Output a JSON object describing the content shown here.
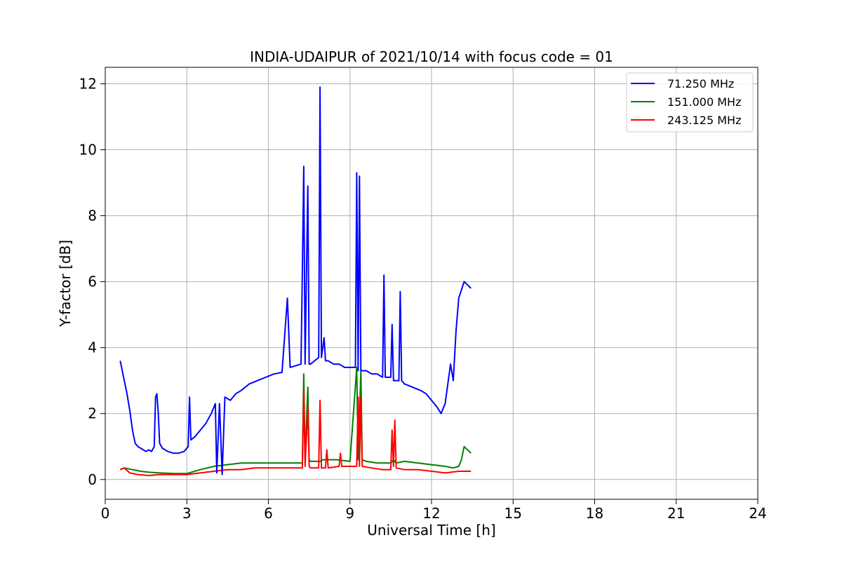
{
  "chart_data": {
    "type": "line",
    "title": "INDIA-UDAIPUR of 2021/10/14 with focus code = 01",
    "xlabel": "Universal Time [h]",
    "ylabel": "Y-factor [dB]",
    "xlim": [
      0,
      24
    ],
    "ylim": [
      -0.6,
      12.5
    ],
    "xticks": [
      0,
      3,
      6,
      9,
      12,
      15,
      18,
      21,
      24
    ],
    "yticks": [
      0,
      2,
      4,
      6,
      8,
      10,
      12
    ],
    "grid": true,
    "legend_position": "top-right",
    "series": [
      {
        "name": "71.250 MHz",
        "label": " 71.250 MHz",
        "color": "#0000ff",
        "x": [
          0.55,
          0.6,
          0.7,
          0.8,
          0.9,
          1.0,
          1.1,
          1.2,
          1.3,
          1.4,
          1.5,
          1.6,
          1.7,
          1.8,
          1.85,
          1.9,
          1.95,
          2.0,
          2.1,
          2.2,
          2.3,
          2.5,
          2.7,
          2.9,
          3.05,
          3.1,
          3.15,
          3.3,
          3.5,
          3.7,
          3.9,
          4.05,
          4.1,
          4.2,
          4.3,
          4.4,
          4.6,
          4.8,
          5.0,
          5.3,
          5.6,
          5.9,
          6.2,
          6.5,
          6.7,
          6.8,
          7.0,
          7.2,
          7.25,
          7.3,
          7.35,
          7.45,
          7.5,
          7.55,
          7.7,
          7.85,
          7.9,
          7.95,
          8.05,
          8.1,
          8.2,
          8.4,
          8.6,
          8.8,
          9.0,
          9.2,
          9.25,
          9.3,
          9.35,
          9.4,
          9.45,
          9.6,
          9.8,
          10.0,
          10.2,
          10.25,
          10.3,
          10.5,
          10.55,
          10.6,
          10.8,
          10.85,
          10.9,
          11.0,
          11.3,
          11.6,
          11.8,
          12.0,
          12.2,
          12.35,
          12.5,
          12.7,
          12.8,
          12.9,
          13.0,
          13.2,
          13.45
        ],
        "y": [
          3.6,
          3.4,
          3.0,
          2.6,
          2.1,
          1.5,
          1.1,
          1.0,
          0.95,
          0.9,
          0.85,
          0.9,
          0.85,
          1.0,
          2.5,
          2.6,
          2.0,
          1.1,
          0.95,
          0.9,
          0.85,
          0.8,
          0.8,
          0.85,
          1.0,
          2.5,
          1.2,
          1.3,
          1.5,
          1.7,
          2.0,
          2.3,
          0.2,
          2.3,
          0.15,
          2.5,
          2.4,
          2.6,
          2.7,
          2.9,
          3.0,
          3.1,
          3.2,
          3.25,
          5.5,
          3.4,
          3.45,
          3.5,
          6.3,
          9.5,
          3.5,
          8.9,
          3.5,
          3.5,
          3.6,
          3.7,
          11.9,
          3.7,
          4.3,
          3.6,
          3.6,
          3.5,
          3.5,
          3.4,
          3.4,
          3.4,
          9.3,
          3.3,
          9.2,
          3.3,
          3.3,
          3.3,
          3.2,
          3.2,
          3.1,
          6.2,
          3.1,
          3.1,
          4.7,
          3.0,
          3.0,
          5.7,
          3.0,
          2.9,
          2.8,
          2.7,
          2.6,
          2.4,
          2.2,
          2.0,
          2.3,
          3.5,
          3.0,
          4.5,
          5.5,
          6.0,
          5.8
        ]
      },
      {
        "name": "151.000 MHz",
        "label": "151.000 MHz",
        "color": "#008000",
        "x": [
          0.55,
          0.7,
          1.0,
          1.3,
          1.6,
          2.0,
          2.5,
          3.0,
          3.5,
          4.0,
          4.5,
          5.0,
          5.5,
          6.0,
          6.5,
          7.0,
          7.25,
          7.3,
          7.35,
          7.45,
          7.5,
          7.55,
          7.9,
          8.0,
          8.5,
          9.0,
          9.25,
          9.3,
          9.4,
          9.45,
          9.6,
          10.0,
          10.5,
          10.6,
          10.7,
          11.0,
          11.5,
          12.0,
          12.5,
          12.8,
          13.0,
          13.1,
          13.2,
          13.45
        ],
        "y": [
          0.3,
          0.35,
          0.3,
          0.25,
          0.22,
          0.2,
          0.18,
          0.18,
          0.3,
          0.4,
          0.45,
          0.5,
          0.5,
          0.5,
          0.5,
          0.5,
          0.5,
          3.2,
          0.6,
          2.8,
          0.6,
          0.55,
          0.55,
          0.6,
          0.6,
          0.55,
          3.4,
          0.6,
          3.3,
          0.6,
          0.55,
          0.5,
          0.5,
          0.6,
          0.5,
          0.55,
          0.5,
          0.45,
          0.4,
          0.35,
          0.4,
          0.6,
          1.0,
          0.8
        ]
      },
      {
        "name": "243.125 MHz",
        "label": "243.125 MHz",
        "color": "#ff0000",
        "x": [
          0.55,
          0.7,
          0.9,
          1.2,
          1.6,
          2.0,
          2.5,
          3.0,
          3.5,
          4.0,
          4.5,
          5.0,
          5.5,
          6.0,
          6.5,
          7.0,
          7.25,
          7.3,
          7.35,
          7.45,
          7.5,
          7.55,
          7.85,
          7.9,
          7.95,
          8.1,
          8.15,
          8.2,
          8.6,
          8.65,
          8.7,
          9.0,
          9.25,
          9.3,
          9.35,
          9.4,
          9.45,
          9.8,
          10.2,
          10.5,
          10.55,
          10.6,
          10.65,
          10.7,
          11.0,
          11.5,
          12.0,
          12.5,
          13.0,
          13.45
        ],
        "y": [
          0.3,
          0.35,
          0.2,
          0.15,
          0.12,
          0.15,
          0.15,
          0.15,
          0.2,
          0.25,
          0.3,
          0.3,
          0.35,
          0.35,
          0.35,
          0.35,
          0.35,
          2.7,
          0.4,
          2.2,
          0.4,
          0.35,
          0.35,
          2.4,
          0.35,
          0.35,
          0.9,
          0.35,
          0.4,
          0.8,
          0.4,
          0.4,
          0.4,
          2.5,
          0.4,
          2.5,
          0.4,
          0.35,
          0.3,
          0.3,
          1.5,
          0.4,
          1.8,
          0.35,
          0.3,
          0.3,
          0.25,
          0.2,
          0.25,
          0.25
        ]
      }
    ]
  }
}
